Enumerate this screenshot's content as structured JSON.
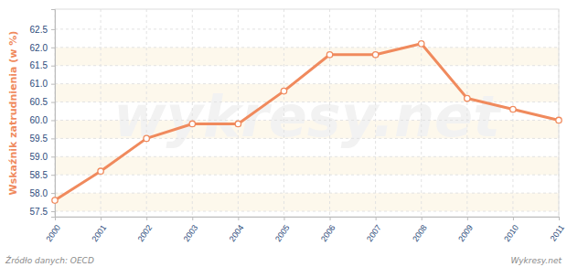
{
  "chart_data": {
    "type": "line",
    "y_label": "Wskaźnik zatrudnienia (w %)",
    "annotations": [
      "Źródło danych: OECD",
      "Wykresy.net",
      "wykresy.net"
    ],
    "x": [
      2000,
      2001,
      2002,
      2003,
      2004,
      2005,
      2006,
      2007,
      2008,
      2009,
      2010,
      2011
    ],
    "values": [
      57.8,
      58.6,
      59.5,
      59.9,
      59.9,
      60.8,
      61.8,
      61.8,
      62.1,
      60.6,
      60.3,
      60.0
    ],
    "color": "#f08a5d",
    "marker": "circle",
    "xlim": [
      2000,
      2011
    ],
    "xticks": [
      2000,
      2001,
      2002,
      2003,
      2004,
      2005,
      2006,
      2007,
      2008,
      2009,
      2010,
      2011
    ],
    "ylim": [
      57.35,
      63.05
    ],
    "yticks": [
      57.5,
      {
        "value": 58,
        "label": "58.0"
      },
      58.5,
      {
        "value": 59,
        "label": "59.0"
      },
      59.5,
      {
        "value": 60,
        "label": "60.0"
      },
      60.5,
      {
        "value": 61,
        "label": "61.0"
      },
      61.5,
      {
        "value": 62,
        "label": "62.0"
      },
      62.5
    ],
    "grid": true
  }
}
